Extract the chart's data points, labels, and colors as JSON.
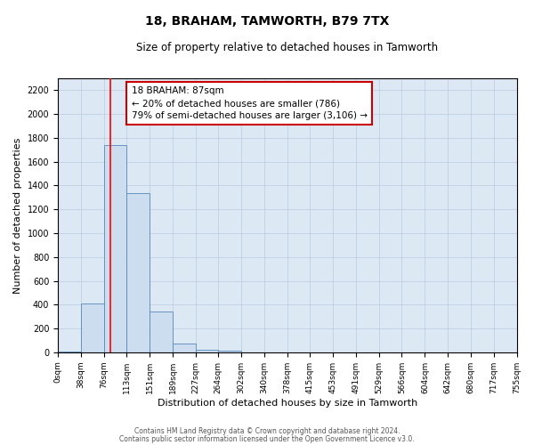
{
  "title": "18, BRAHAM, TAMWORTH, B79 7TX",
  "subtitle": "Size of property relative to detached houses in Tamworth",
  "xlabel": "Distribution of detached houses by size in Tamworth",
  "ylabel": "Number of detached properties",
  "bar_color": "#ccddf0",
  "bar_edge_color": "#5588bb",
  "background_color": "#ffffff",
  "plot_bg_color": "#dde8f5",
  "grid_color": "#bbccdd",
  "bin_labels": [
    "0sqm",
    "38sqm",
    "76sqm",
    "113sqm",
    "151sqm",
    "189sqm",
    "227sqm",
    "264sqm",
    "302sqm",
    "340sqm",
    "378sqm",
    "415sqm",
    "453sqm",
    "491sqm",
    "529sqm",
    "566sqm",
    "604sqm",
    "642sqm",
    "680sqm",
    "717sqm",
    "755sqm"
  ],
  "bin_edges": [
    0,
    38,
    76,
    113,
    151,
    189,
    227,
    264,
    302,
    340,
    378,
    415,
    453,
    491,
    529,
    566,
    604,
    642,
    680,
    717,
    755
  ],
  "bar_heights": [
    10,
    410,
    1740,
    1340,
    340,
    75,
    25,
    12,
    0,
    0,
    0,
    0,
    0,
    0,
    0,
    0,
    0,
    0,
    0,
    0
  ],
  "red_line_x": 87,
  "annotation_line1": "18 BRAHAM: 87sqm",
  "annotation_line2": "← 20% of detached houses are smaller (786)",
  "annotation_line3": "79% of semi-detached houses are larger (3,106) →",
  "annotation_box_color": "#ffffff",
  "annotation_box_edge": "#cc0000",
  "ylim": [
    0,
    2300
  ],
  "yticks": [
    0,
    200,
    400,
    600,
    800,
    1000,
    1200,
    1400,
    1600,
    1800,
    2000,
    2200
  ],
  "footer_line1": "Contains HM Land Registry data © Crown copyright and database right 2024.",
  "footer_line2": "Contains public sector information licensed under the Open Government Licence v3.0."
}
